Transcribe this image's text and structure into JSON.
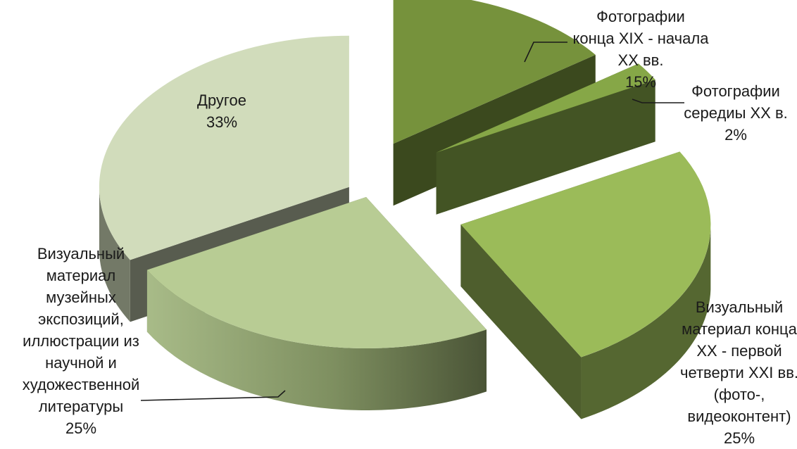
{
  "chart_data": {
    "type": "pie",
    "title": "",
    "style": "3d-exploded",
    "slices": [
      {
        "label": "Фотографии конца XIX - начала XX вв.",
        "label_lines": [
          "Фотографии",
          "конца XIX - начала",
          "XX вв."
        ],
        "percent_label": "15%",
        "value": 15,
        "color": "#76923c"
      },
      {
        "label": "Фотографии середиы XX в.",
        "label_lines": [
          "Фотографии",
          "середиы XX в."
        ],
        "percent_label": "2%",
        "value": 2,
        "color": "#86a747"
      },
      {
        "label": "Визуальный материал конца XX - первой четверти XXI вв. (фото-, видеоконтент)",
        "label_lines": [
          "Визуальный",
          "материал конца",
          "XX - первой",
          "четверти XXI вв.",
          "(фото-,",
          "видеоконтент)"
        ],
        "percent_label": "25%",
        "value": 25,
        "color": "#9bbb59"
      },
      {
        "label": "Визуальный материал музейных экспозиций, иллюстрации из научной и художественной литературы",
        "label_lines": [
          "Визуальный",
          "материал",
          "музейных",
          "экспозиций,",
          "иллюстрации из",
          "научной и",
          "художественной",
          "литературы"
        ],
        "percent_label": "25%",
        "value": 25,
        "color": "#b8cc94"
      },
      {
        "label": "Другое",
        "label_lines": [
          "Другое"
        ],
        "percent_label": "33%",
        "value": 33,
        "color": "#d1dcbb"
      }
    ]
  }
}
